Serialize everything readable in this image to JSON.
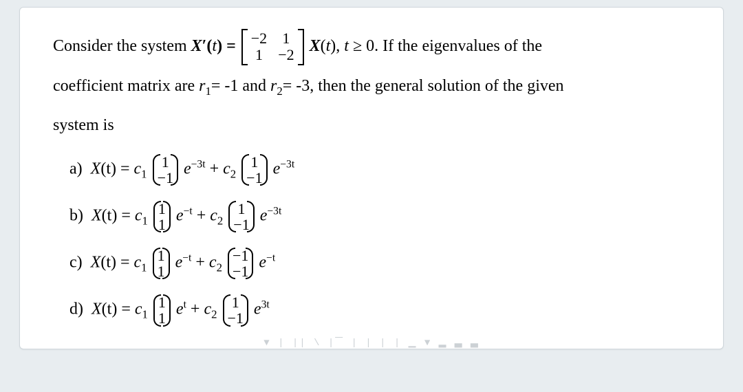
{
  "colors": {
    "page_bg": "#e8edf0",
    "card_bg": "#ffffff",
    "card_border": "#cfd6db",
    "text": "#000000",
    "footer": "#9aa4ac"
  },
  "typography": {
    "body_font": "Times New Roman",
    "body_size_pt": 18,
    "option_size_pt": 18
  },
  "problem": {
    "intro_a": "Consider the system ",
    "system_lhs": "X′(t) =",
    "matrix": [
      [
        "−2",
        "1"
      ],
      [
        "1",
        "−2"
      ]
    ],
    "after_matrix": "X(t), t ≥ 0. If the eigenvalues of the",
    "line2": "coefficient matrix are ",
    "r1_label": "r",
    "r1_sub": "1",
    "r1_val": "= -1 and ",
    "r2_label": "r",
    "r2_sub": "2",
    "r2_val": "= -3, then the general solution of the given",
    "line3": "system is"
  },
  "options": [
    {
      "label": "a)",
      "vec1": [
        "1",
        "−1"
      ],
      "exp1": "−3t",
      "vec2": [
        "1",
        "−1"
      ],
      "exp2": "−3t"
    },
    {
      "label": "b)",
      "vec1": [
        "1",
        "1"
      ],
      "exp1": "−t",
      "vec2": [
        "1",
        "−1"
      ],
      "exp2": "−3t"
    },
    {
      "label": "c)",
      "vec1": [
        "1",
        "1"
      ],
      "exp1": "−t",
      "vec2": [
        "−1",
        "−1"
      ],
      "exp2": "−t"
    },
    {
      "label": "d)",
      "vec1": [
        "1",
        "1"
      ],
      "exp1": "t",
      "vec2": [
        "1",
        "−1"
      ],
      "exp2": "3t"
    }
  ],
  "constants": {
    "X": "X",
    "t": "(t) = ",
    "c1": "c",
    "c1sub": "1",
    "c2": "c",
    "c2sub": "2",
    "e": "e",
    "plus": " + "
  },
  "footer_text": "▼ | || \\  |▔ | | | | ▁  ▼ ▂ ▃ ▃"
}
